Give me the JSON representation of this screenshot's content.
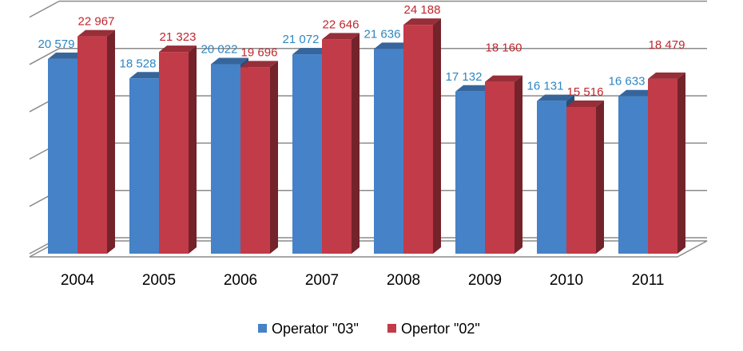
{
  "chart_data": {
    "type": "bar",
    "title": "",
    "xlabel": "",
    "ylabel": "",
    "ylim": [
      0,
      25000
    ],
    "grid": true,
    "legend_position": "bottom",
    "categories": [
      "2004",
      "2005",
      "2006",
      "2007",
      "2008",
      "2009",
      "2010",
      "2011"
    ],
    "series": [
      {
        "name": "Operator \"03\"",
        "color": "#4582C8",
        "values": [
          20579,
          18528,
          20022,
          21072,
          21636,
          17132,
          16131,
          16633
        ],
        "labels": [
          "20 579",
          "18 528",
          "20 022",
          "21 072",
          "21 636",
          "17 132",
          "16 131",
          "16 633"
        ],
        "label_color": "#2E86C1"
      },
      {
        "name": "Opertor \"02\"",
        "color": "#C23B48",
        "values": [
          22967,
          21323,
          19696,
          22646,
          24188,
          18160,
          15516,
          18479
        ],
        "labels": [
          "22 967",
          "21 323",
          "19 696",
          "22 646",
          "24 188",
          "18 160",
          "15 516",
          "18 479"
        ],
        "label_color": "#C0262D"
      }
    ]
  }
}
